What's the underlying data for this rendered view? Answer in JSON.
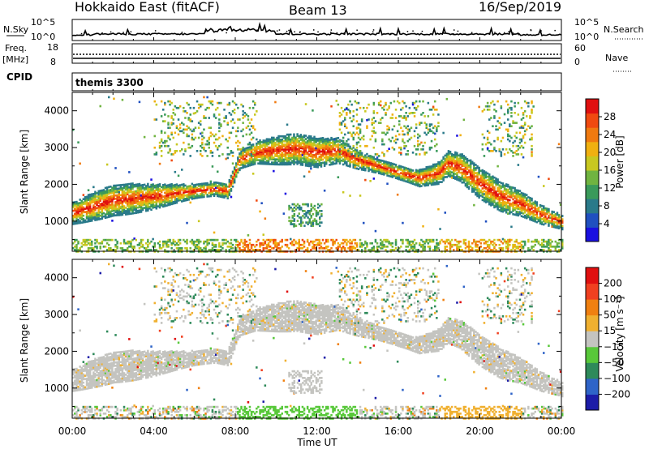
{
  "header": {
    "radar": "Hokkaido East (fitACF)",
    "beam": "Beam 13",
    "date": "16/Sep/2019"
  },
  "noise_panel": {
    "left_label": "N.Sky",
    "right_label": "N.Search",
    "left_ticks": [
      "10^5",
      "10^0"
    ],
    "right_ticks": [
      "10^5",
      "10^0"
    ]
  },
  "freq_panel": {
    "left_label_1": "Freq.",
    "left_label_2": "[MHz]",
    "left_ticks": [
      "18",
      "8"
    ],
    "right_label": "Nave",
    "right_ticks": [
      "60",
      "0"
    ]
  },
  "cpid": {
    "label": "CPID",
    "value": "themis 3300"
  },
  "chart_data": [
    {
      "type": "heatmap",
      "parameter": "Power",
      "ylabel": "Slant Range [km]",
      "yticks": [
        "4000",
        "3000",
        "2000",
        "1000"
      ],
      "ylim": [
        180,
        4500
      ],
      "xlim": [
        0,
        24
      ],
      "colorbar": {
        "label": "Power [dB]",
        "ticks": [
          "28",
          "24",
          "20",
          "16",
          "12",
          "8",
          "4"
        ],
        "colors": [
          "#1a10e0",
          "#2050c0",
          "#2a7a8a",
          "#3a9a5a",
          "#70b440",
          "#c8c820",
          "#f0b010",
          "#f07a10",
          "#f04a10",
          "#e01010"
        ]
      }
    },
    {
      "type": "heatmap",
      "parameter": "Velocity",
      "ylabel": "Slant Range [km]",
      "yticks": [
        "4000",
        "3000",
        "2000",
        "1000"
      ],
      "ylim": [
        180,
        4500
      ],
      "xlim": [
        0,
        24
      ],
      "xticks": [
        "00:00",
        "04:00",
        "08:00",
        "12:00",
        "16:00",
        "20:00",
        "00:00"
      ],
      "xlabel": "Time UT",
      "colorbar": {
        "label": "Velocity [m s⁻¹]",
        "ticks": [
          "200",
          "100",
          "50",
          "15",
          "−15",
          "−50",
          "−100",
          "−200"
        ],
        "colors": [
          "#1c1ca8",
          "#2f64c8",
          "#2e8a5a",
          "#58c83a",
          "#c4c4c0",
          "#f0b030",
          "#f08010",
          "#f04020",
          "#e01010"
        ]
      }
    }
  ]
}
